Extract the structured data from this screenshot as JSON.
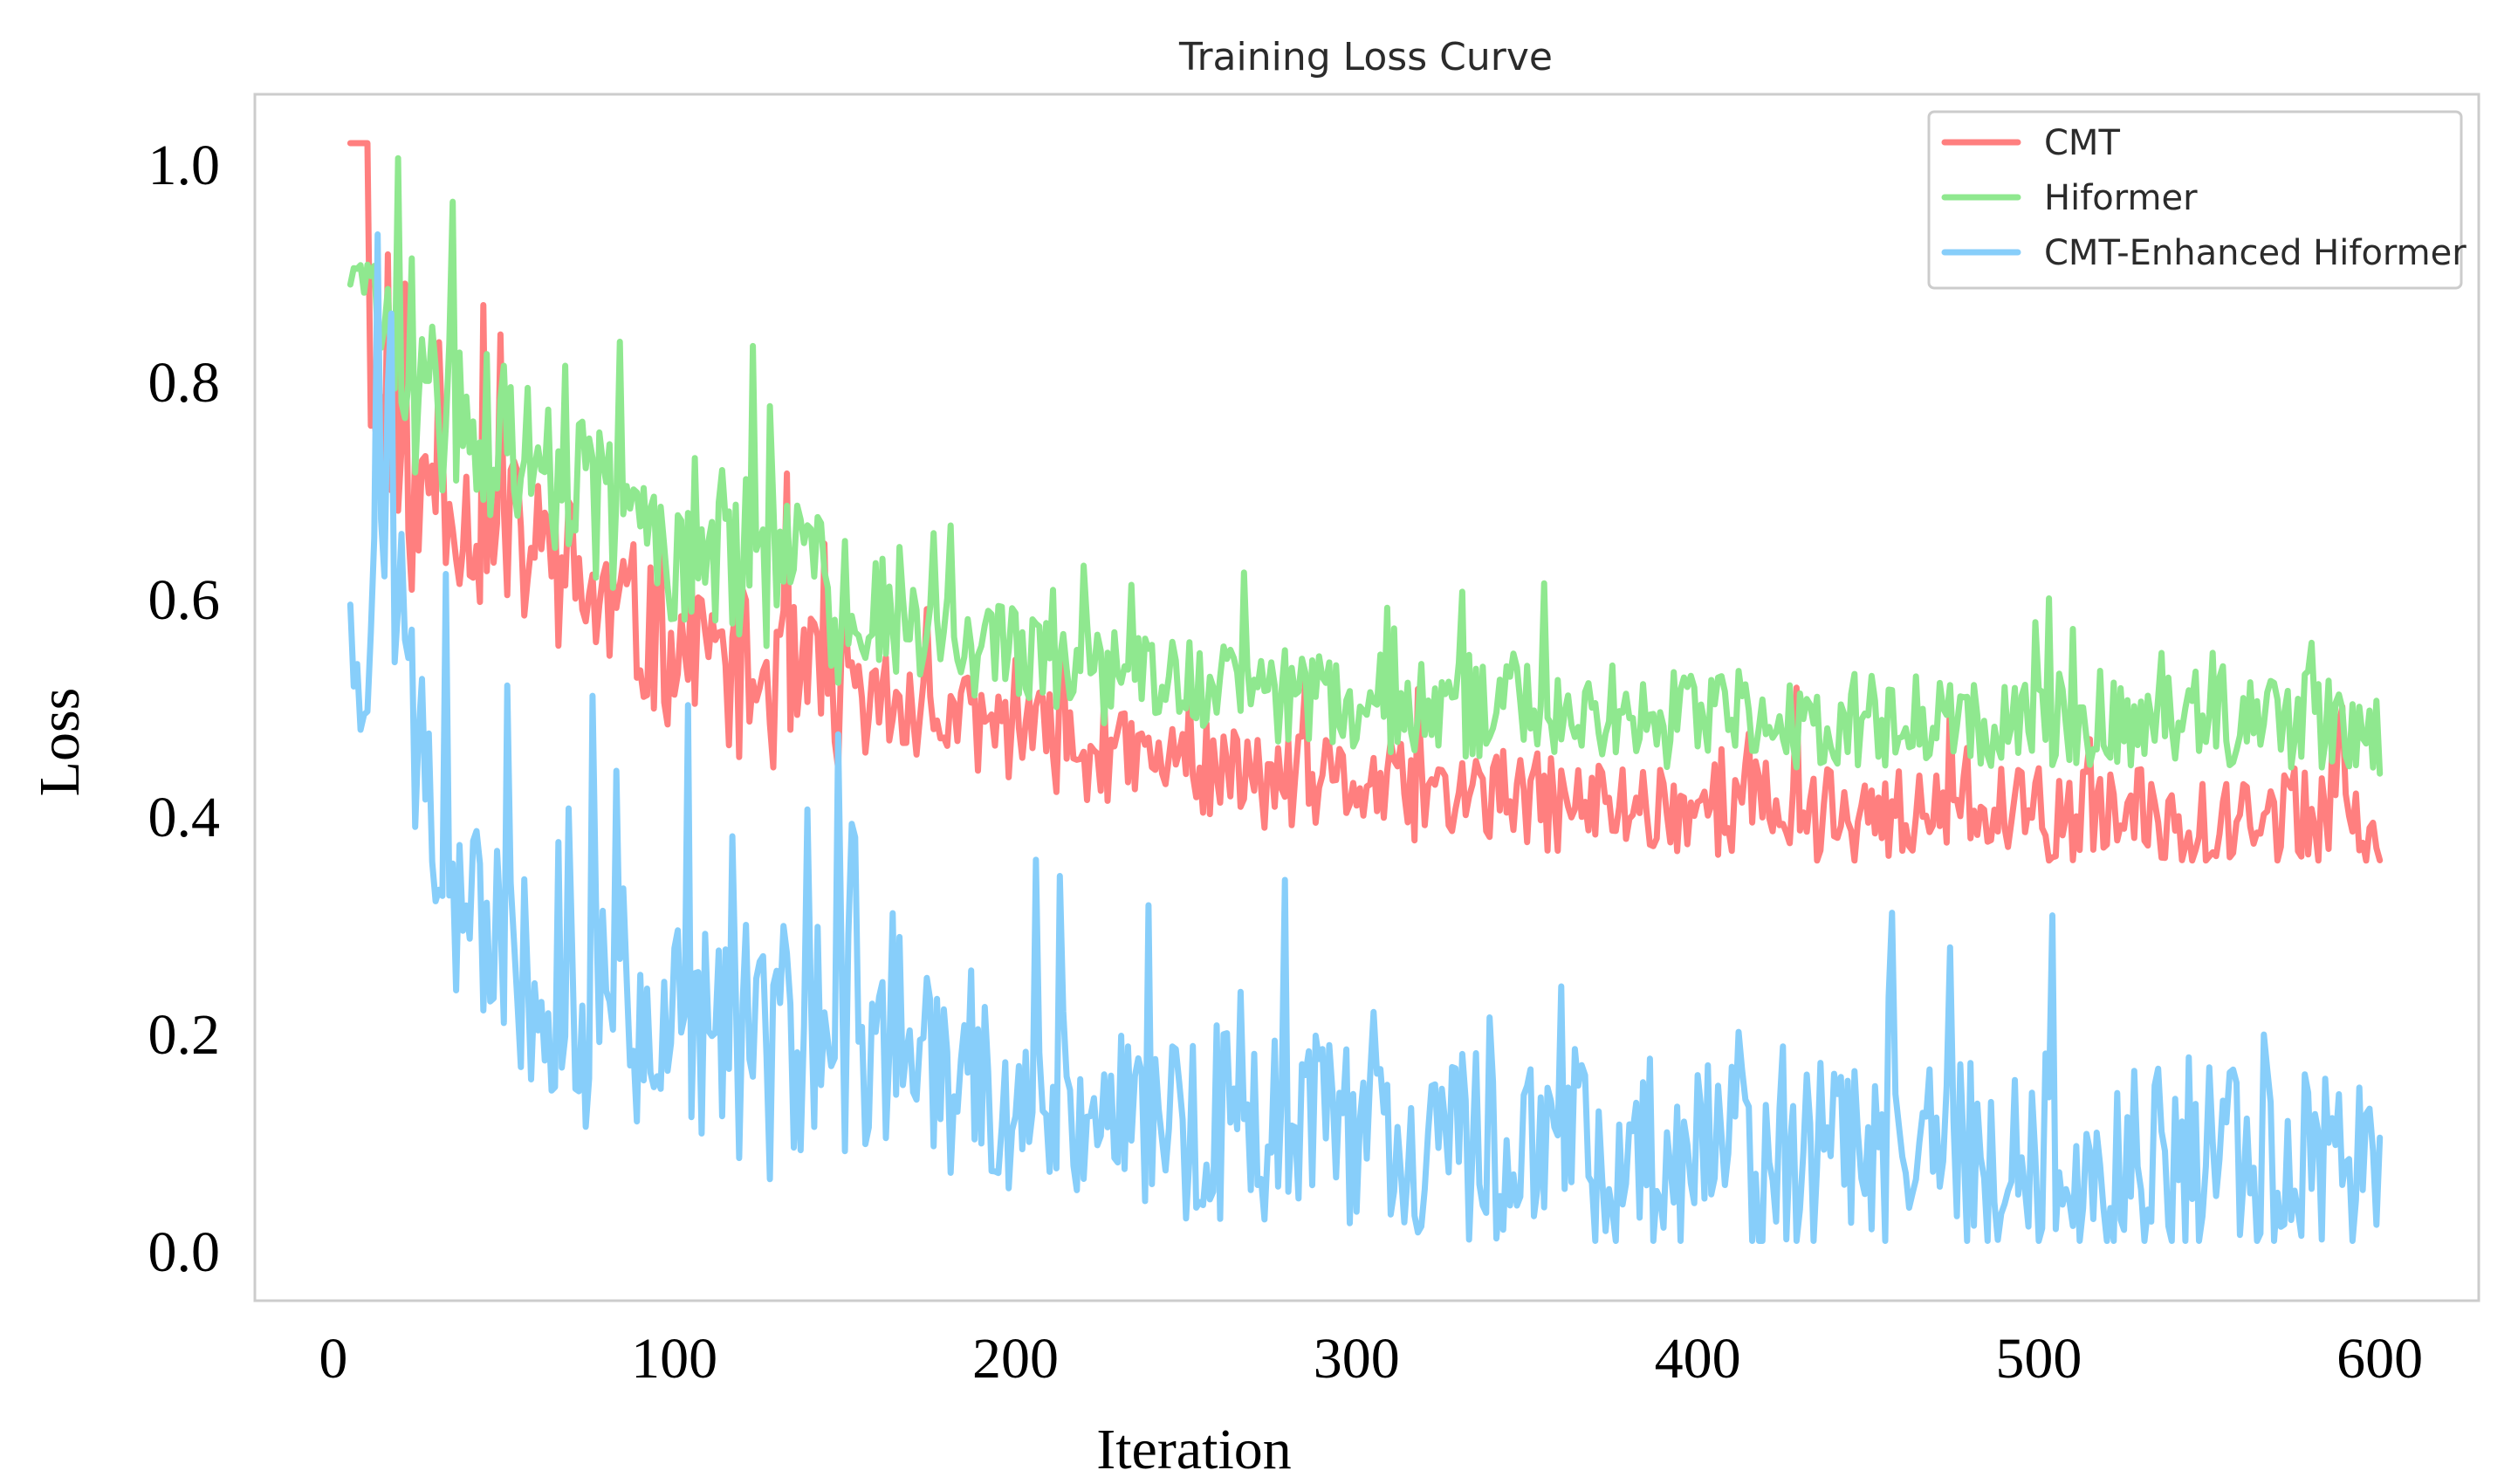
{
  "chart_data": {
    "type": "line",
    "title": "Training Loss Curve",
    "xlabel": "Iteration",
    "ylabel": "Loss",
    "xlim": [
      -23,
      629
    ],
    "ylim": [
      -0.045,
      1.065
    ],
    "xticks": [
      0,
      100,
      200,
      300,
      400,
      500,
      600
    ],
    "yticks": [
      0.0,
      0.2,
      0.4,
      0.6,
      0.8,
      1.0
    ],
    "xtick_labels": [
      "0",
      "100",
      "200",
      "300",
      "400",
      "500",
      "600"
    ],
    "ytick_labels": [
      "0.0",
      "0.2",
      "0.4",
      "0.6",
      "0.8",
      "1.0"
    ],
    "grid": false,
    "legend_position": "top-right",
    "series": [
      {
        "name": "CMT",
        "color": "#FF7F7F",
        "x": [
          5,
          10,
          11,
          15,
          20,
          25,
          30,
          35,
          40,
          50,
          60,
          70,
          80,
          90,
          100,
          120,
          140,
          160,
          180,
          200,
          220,
          240,
          260,
          280,
          300,
          320,
          340,
          360,
          380,
          400,
          420,
          440,
          460,
          480,
          500,
          520,
          540,
          560,
          580,
          600
        ],
        "values": [
          1.02,
          1.02,
          0.76,
          0.76,
          0.69,
          0.68,
          0.72,
          0.7,
          0.67,
          0.66,
          0.64,
          0.62,
          0.59,
          0.57,
          0.56,
          0.53,
          0.51,
          0.5,
          0.49,
          0.48,
          0.46,
          0.45,
          0.44,
          0.43,
          0.43,
          0.42,
          0.42,
          0.41,
          0.41,
          0.41,
          0.41,
          0.4,
          0.4,
          0.4,
          0.4,
          0.4,
          0.4,
          0.4,
          0.4,
          0.37
        ]
      },
      {
        "name": "Hiformer",
        "color": "#8FE88F",
        "x": [
          5,
          10,
          15,
          20,
          25,
          30,
          40,
          50,
          60,
          70,
          80,
          90,
          100,
          120,
          140,
          160,
          180,
          200,
          220,
          240,
          260,
          280,
          300,
          320,
          340,
          360,
          380,
          400,
          420,
          440,
          460,
          480,
          500,
          520,
          540,
          560,
          580,
          600
        ],
        "values": [
          0.9,
          0.89,
          0.84,
          0.8,
          0.79,
          0.78,
          0.76,
          0.74,
          0.72,
          0.7,
          0.68,
          0.67,
          0.66,
          0.64,
          0.61,
          0.58,
          0.56,
          0.55,
          0.53,
          0.53,
          0.52,
          0.51,
          0.5,
          0.5,
          0.5,
          0.5,
          0.49,
          0.49,
          0.49,
          0.49,
          0.49,
          0.49,
          0.49,
          0.49,
          0.49,
          0.49,
          0.49,
          0.47
        ]
      },
      {
        "name": "CMT-Enhanced Hiformer",
        "color": "#87CEFA",
        "x": [
          5,
          8,
          12,
          15,
          20,
          25,
          30,
          35,
          40,
          50,
          60,
          70,
          80,
          90,
          100,
          120,
          140,
          160,
          180,
          200,
          220,
          240,
          260,
          280,
          300,
          320,
          340,
          360,
          380,
          400,
          420,
          440,
          460,
          480,
          500,
          520,
          540,
          560,
          580,
          600
        ],
        "values": [
          0.62,
          0.47,
          0.6,
          0.74,
          0.55,
          0.44,
          0.4,
          0.34,
          0.29,
          0.26,
          0.24,
          0.23,
          0.22,
          0.21,
          0.2,
          0.19,
          0.18,
          0.17,
          0.15,
          0.14,
          0.13,
          0.12,
          0.12,
          0.11,
          0.11,
          0.1,
          0.1,
          0.1,
          0.09,
          0.09,
          0.09,
          0.09,
          0.09,
          0.09,
          0.08,
          0.08,
          0.08,
          0.08,
          0.08,
          0.06
        ]
      }
    ]
  }
}
